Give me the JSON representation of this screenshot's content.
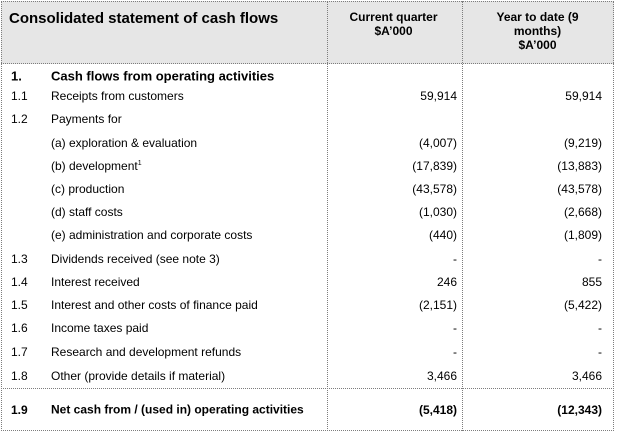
{
  "header": {
    "title": "Consolidated statement of cash flows",
    "col1": [
      "Current quarter",
      "$A’000"
    ],
    "col2": [
      "Year to date (9",
      "months)",
      "$A’000"
    ]
  },
  "rows": [
    {
      "num": "1.",
      "label": "Cash flows from operating activities",
      "v1": "",
      "v2": ""
    },
    {
      "num": "1.1",
      "label": "Receipts from customers",
      "v1": "59,914",
      "v2": "59,914"
    },
    {
      "num": "1.2",
      "label": "Payments for",
      "v1": "",
      "v2": ""
    },
    {
      "num": "",
      "label": "(a)  exploration & evaluation",
      "v1": "(4,007)",
      "v2": "(9,219)"
    },
    {
      "num": "",
      "label": "(b)  development",
      "label_sup": "1",
      "v1": "(17,839)",
      "v2": "(13,883)"
    },
    {
      "num": "",
      "label": "(c)  production",
      "v1": "(43,578)",
      "v2": "(43,578)"
    },
    {
      "num": "",
      "label": "(d)  staff costs",
      "v1": "(1,030)",
      "v2": "(2,668)"
    },
    {
      "num": "",
      "label": "(e)  administration and corporate costs",
      "v1": "(440)",
      "v2": "(1,809)"
    },
    {
      "num": "1.3",
      "label": "Dividends received (see note 3)",
      "v1": "-",
      "v2": "-"
    },
    {
      "num": "1.4",
      "label": "Interest received",
      "v1": "246",
      "v2": "855"
    },
    {
      "num": "1.5",
      "label": "Interest and other costs of finance paid",
      "v1": "(2,151)",
      "v2": "(5,422)"
    },
    {
      "num": "1.6",
      "label": "Income taxes paid",
      "v1": "-",
      "v2": "-"
    },
    {
      "num": "1.7",
      "label": "Research and development refunds",
      "v1": "-",
      "v2": "-"
    },
    {
      "num": "1.8",
      "label": "Other (provide details if material)",
      "v1": "3,466",
      "v2": "3,466"
    },
    {
      "num": "1.9",
      "label": "Net cash from / (used in) operating activities",
      "v1": "(5,418)",
      "v2": "(12,343)"
    }
  ]
}
